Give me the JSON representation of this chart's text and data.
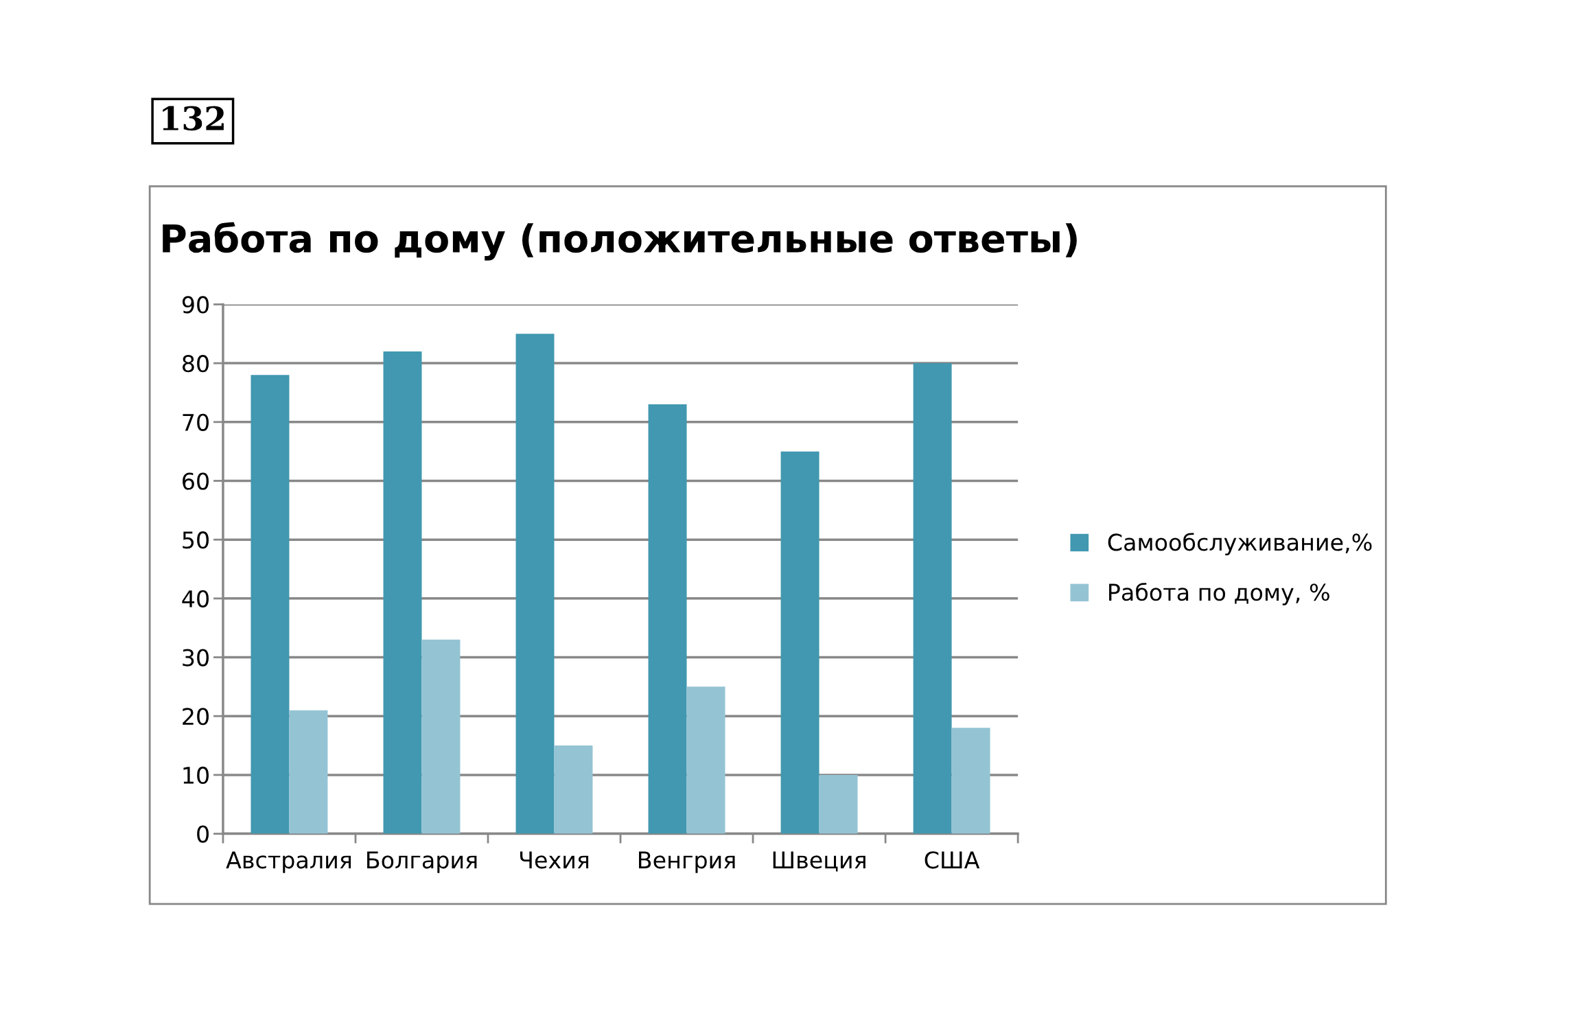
{
  "chart_data": {
    "type": "bar",
    "title": "Работа по дому (положительные ответы)",
    "annotations": [
      "132"
    ],
    "categories": [
      "Австралия",
      "Болгария",
      "Чехия",
      "Венгрия",
      "Швеция",
      "США"
    ],
    "series": [
      {
        "name": "Самообслуживание,%",
        "color": "#4198b0",
        "values": [
          78,
          82,
          85,
          73,
          65,
          80
        ]
      },
      {
        "name": "Работа по дому, %",
        "color": "#94c4d4",
        "values": [
          21,
          33,
          15,
          25,
          10,
          18
        ]
      }
    ],
    "ylim": [
      0,
      90
    ],
    "yticks": [
      0,
      10,
      20,
      30,
      40,
      50,
      60,
      70,
      80,
      90
    ],
    "grid": "y",
    "legend": "right"
  }
}
